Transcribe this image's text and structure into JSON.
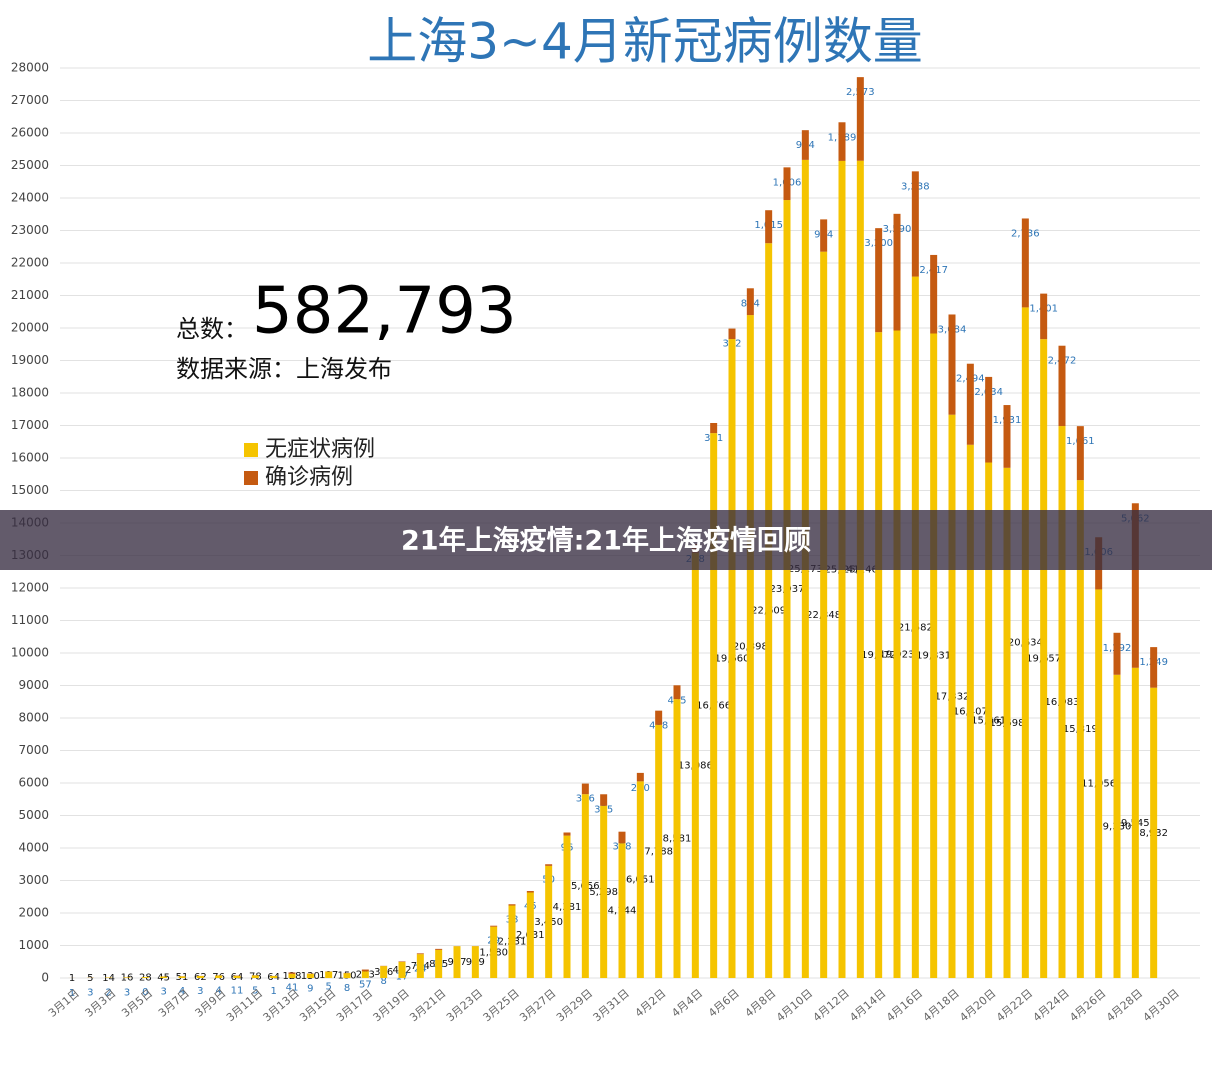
{
  "chart_data": {
    "type": "stacked_bar",
    "title": "上海3~4月新冠病例数量",
    "total_label": "总数：",
    "total": "582,793",
    "source": "数据来源：上海发布",
    "banner": "21年上海疫情:21年上海疫情回顾",
    "categories": [
      "3月1日",
      null,
      "3月3日",
      null,
      "3月5日",
      null,
      "3月7日",
      null,
      "3月9日",
      null,
      "3月11日",
      null,
      "3月13日",
      null,
      "3月15日",
      null,
      "3月17日",
      null,
      "3月19日",
      null,
      "3月21日",
      null,
      "3月23日",
      null,
      "3月25日",
      null,
      "3月27日",
      null,
      "3月29日",
      null,
      "3月31日",
      null,
      "4月2日",
      null,
      "4月4日",
      null,
      "4月6日",
      null,
      "4月8日",
      null,
      "4月10日",
      null,
      "4月12日",
      null,
      "4月14日",
      null,
      "4月16日",
      null,
      "4月18日",
      null,
      "4月20日",
      null,
      "4月22日",
      null,
      "4月24日",
      null,
      "4月26日",
      null,
      "4月28日",
      null,
      "4月30日"
    ],
    "series": [
      {
        "name": "无症状病例",
        "color": "#f5c400",
        "label_color": "#111111",
        "values": [
          1,
          5,
          14,
          16,
          28,
          45,
          51,
          62,
          76,
          64,
          78,
          64,
          128,
          130,
          197,
          150,
          203,
          366,
          492,
          734,
          865,
          977,
          979,
          1580,
          2231,
          2631,
          3450,
          4381,
          5656,
          5298,
          4144,
          6051,
          7788,
          8581,
          13086,
          16766,
          19660,
          20398,
          22609,
          23937,
          25173,
          22348,
          25141,
          25146,
          19872,
          19923,
          21582,
          19831,
          17332,
          16407,
          15861,
          15698,
          20634,
          19657,
          16983,
          15319,
          11956,
          9330,
          9545,
          8932,
          null
        ],
        "value_labels": [
          "1",
          "5",
          "14",
          "16",
          "28",
          "45",
          "51",
          "62",
          "76",
          "64",
          "78",
          "64",
          "128",
          "130",
          "197",
          "150",
          "203",
          "366",
          "492",
          "734",
          "865",
          "977",
          "979",
          "1,580",
          "2,231",
          "2,631",
          "3,450",
          "4,381",
          "5,656",
          "5,298",
          "4,144",
          "6,051",
          "7,788",
          "8,581",
          "13,086",
          "16,766",
          "19,660",
          "20,398",
          "22,609",
          "23,937",
          "25,173",
          "22,348",
          "25,141",
          "25,146",
          "19,872",
          "19,923",
          "21,582",
          "19,831",
          "17,332",
          "16,407",
          "15,861",
          "15,698",
          "20,634",
          "19,657",
          "16,983",
          "15,319",
          "11,956",
          "9,330",
          "9,545",
          "8,932",
          null
        ]
      },
      {
        "name": "确诊病例",
        "color": "#c55a11",
        "label_color": "#2e75b6",
        "values": [
          1,
          3,
          2,
          3,
          0,
          3,
          4,
          3,
          4,
          11,
          5,
          1,
          41,
          9,
          5,
          8,
          57,
          8,
          17,
          24,
          31,
          4,
          4,
          29,
          38,
          45,
          50,
          96,
          326,
          355,
          358,
          260,
          438,
          425,
          268,
          311,
          322,
          824,
          1015,
          1006,
          914,
          994,
          1189,
          2573,
          3200,
          3590,
          3238,
          2417,
          3084,
          2494,
          2634,
          1931,
          2736,
          1401,
          2472,
          1661,
          1606,
          1292,
          5062,
          1249,
          null
        ],
        "value_labels": [
          "1",
          "3",
          "2",
          "3",
          "0",
          "3",
          "4",
          "3",
          "4",
          "11",
          "5",
          "1",
          "41",
          "9",
          "5",
          "8",
          "57",
          "8",
          "17",
          "24",
          "31",
          "4",
          "4",
          "29",
          "38",
          "45",
          "50",
          "96",
          "326",
          "355",
          "358",
          "260",
          "438",
          "425",
          "268",
          "311",
          "322",
          "824",
          "1,015",
          "1,006",
          "914",
          "994",
          "1,189",
          "2,573",
          "3,200",
          "3,590",
          "3,238",
          "2,417",
          "3,084",
          "2,494",
          "2,634",
          "1,931",
          "2,736",
          "1,401",
          "2,472",
          "1,661",
          "1,606",
          "1,292",
          "5,062",
          "1,249",
          null
        ]
      }
    ],
    "ylim": [
      0,
      28000
    ],
    "yticks": [
      0,
      1000,
      2000,
      3000,
      4000,
      5000,
      6000,
      7000,
      8000,
      9000,
      10000,
      11000,
      12000,
      13000,
      14000,
      15000,
      16000,
      17000,
      18000,
      19000,
      20000,
      21000,
      22000,
      23000,
      24000,
      25000,
      26000,
      27000,
      28000
    ],
    "grid": true
  }
}
